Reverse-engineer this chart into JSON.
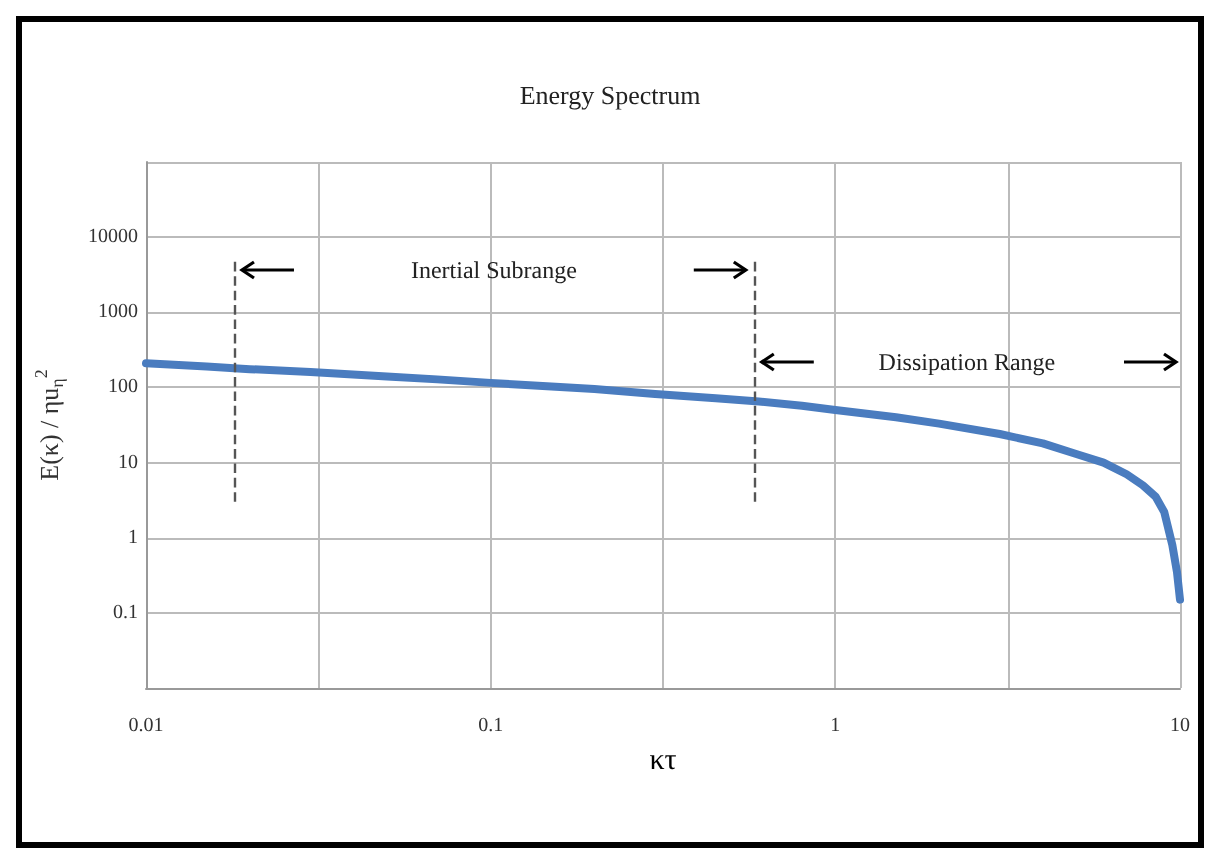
{
  "chart_data": {
    "type": "line",
    "title": "Energy Spectrum",
    "xlabel": "κτ",
    "ylabel": "E(κ) / ηu$_{η}$$^{2}$",
    "x": [
      0.01,
      0.015,
      0.02,
      0.03,
      0.05,
      0.07,
      0.1,
      0.15,
      0.2,
      0.3,
      0.45,
      0.6,
      0.8,
      1,
      1.5,
      2,
      3,
      4,
      5,
      6,
      7,
      7.8,
      8.5,
      9,
      9.5,
      9.8,
      10
    ],
    "series": [
      {
        "color": "#4a7cbf",
        "values": [
          210,
          190,
          175,
          160,
          140,
          128,
          115,
          103,
          95,
          82,
          72,
          65,
          57,
          50,
          40,
          33,
          24,
          18,
          13,
          10,
          7,
          5,
          3.5,
          2.2,
          0.8,
          0.35,
          0.15
        ]
      }
    ],
    "log": "xy",
    "xlim": [
      0.01,
      10
    ],
    "ylim": [
      0.01,
      100000
    ],
    "xticks": [
      0.01,
      {
        "value": 0.0316,
        "label": null
      },
      0.1,
      {
        "value": 0.316,
        "label": null
      },
      1,
      {
        "value": 3.16,
        "label": null
      },
      10
    ],
    "yticks": [
      {
        "value": 0.01,
        "label": null
      },
      0.1,
      1,
      10,
      100,
      1000,
      10000,
      {
        "value": 100000,
        "label": null
      }
    ],
    "grid": true,
    "marker": "none",
    "line_style": "solid",
    "ref_lines": [
      {
        "axis": "x",
        "value": 0.018,
        "line_style": "dashed",
        "color": "#555555"
      },
      {
        "axis": "x",
        "value": 0.58,
        "line_style": "dashed",
        "color": "#555555"
      }
    ],
    "annotations": [
      "Inertial Subrange",
      "Dissipation Range"
    ]
  }
}
